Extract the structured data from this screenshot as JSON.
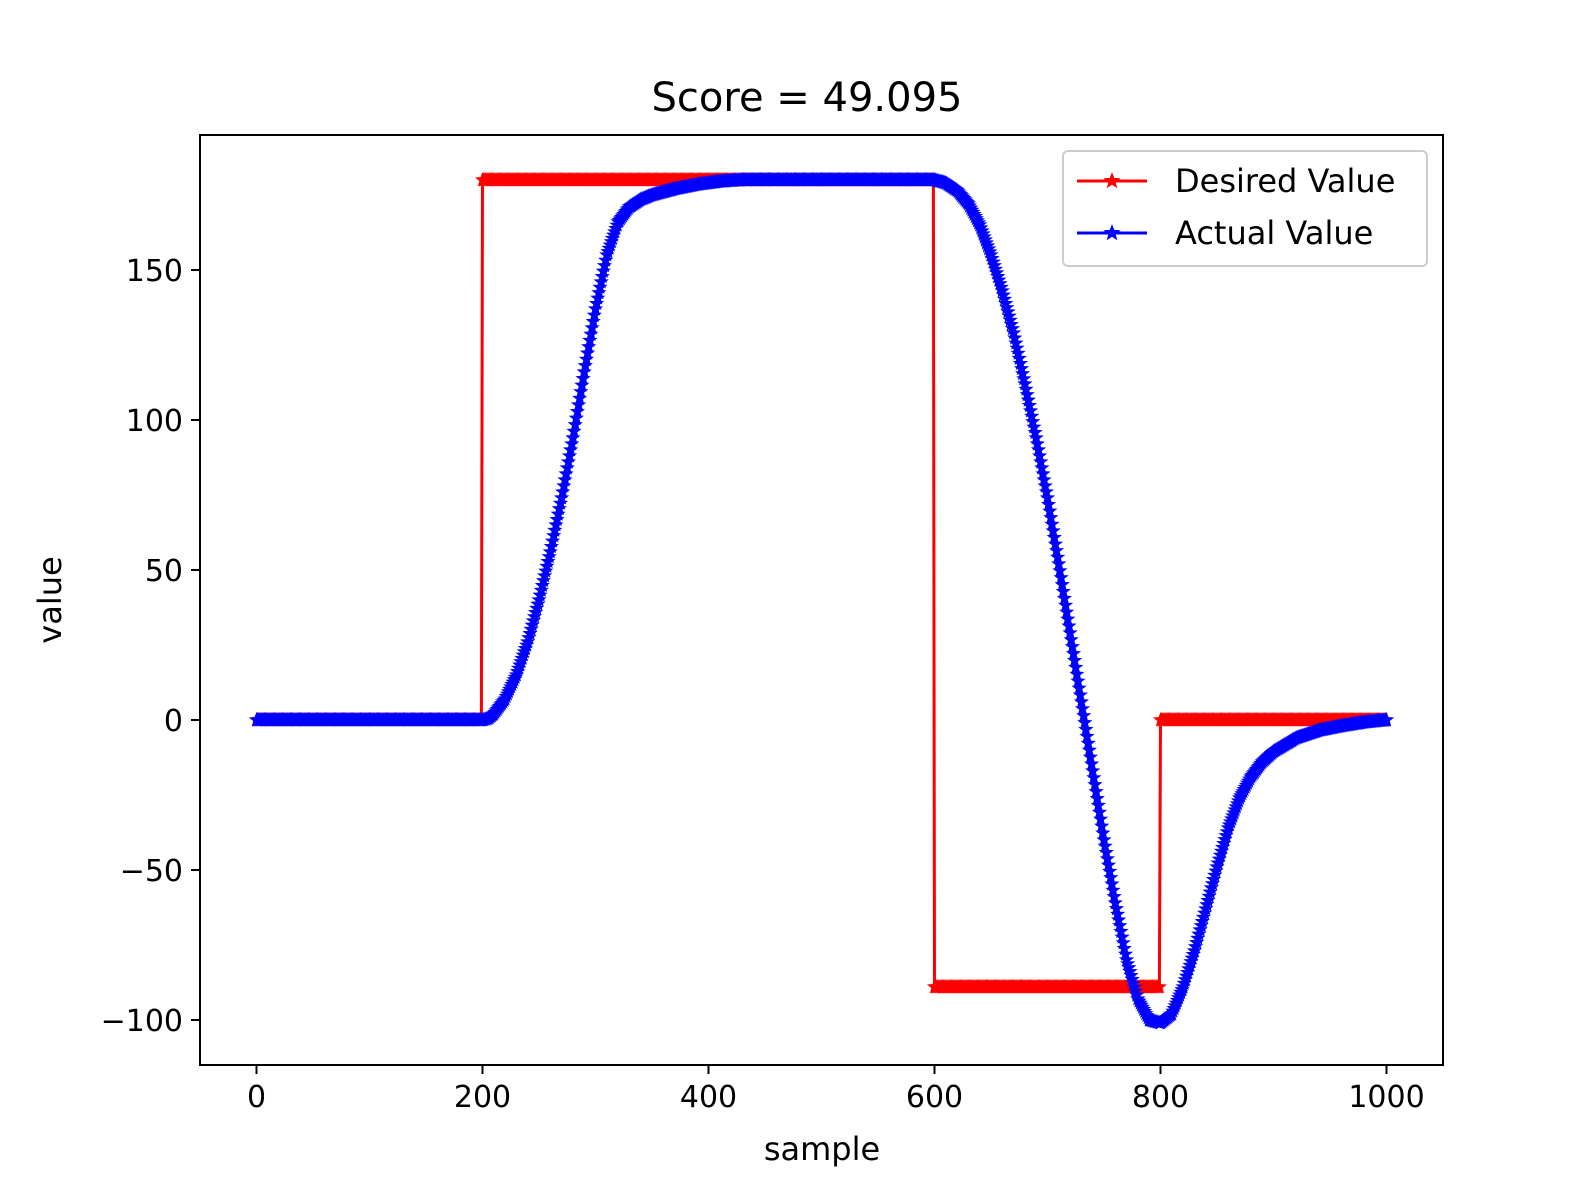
{
  "chart_data": {
    "type": "line",
    "title": "Score = 49.095",
    "xlabel": "sample",
    "ylabel": "value",
    "xlim": [
      -50,
      1050
    ],
    "ylim": [
      -115,
      195
    ],
    "xticks": [
      0,
      200,
      400,
      600,
      800,
      1000
    ],
    "xtick_labels": [
      "0",
      "200",
      "400",
      "600",
      "800",
      "1000"
    ],
    "yticks": [
      -100,
      -50,
      0,
      50,
      100,
      150
    ],
    "ytick_labels": [
      "−100",
      "−50",
      "0",
      "50",
      "100",
      "150"
    ],
    "grid": false,
    "legend_position": "upper-right",
    "marker": "star",
    "series": [
      {
        "name": "Desired Value",
        "color": "#ff0000",
        "points": [
          [
            0,
            0
          ],
          [
            199,
            0
          ],
          [
            200,
            180
          ],
          [
            599,
            180
          ],
          [
            600,
            -89
          ],
          [
            799,
            -89
          ],
          [
            800,
            0
          ],
          [
            1000,
            0
          ]
        ]
      },
      {
        "name": "Actual Value",
        "color": "#0000ff",
        "points": [
          [
            0,
            0
          ],
          [
            200,
            0
          ],
          [
            205,
            0.5
          ],
          [
            210,
            2
          ],
          [
            220,
            7
          ],
          [
            230,
            15
          ],
          [
            240,
            26
          ],
          [
            250,
            40
          ],
          [
            260,
            56
          ],
          [
            270,
            74
          ],
          [
            280,
            94
          ],
          [
            290,
            116
          ],
          [
            300,
            137
          ],
          [
            310,
            155
          ],
          [
            320,
            166
          ],
          [
            330,
            171
          ],
          [
            340,
            173.5
          ],
          [
            350,
            175
          ],
          [
            370,
            177
          ],
          [
            390,
            178.5
          ],
          [
            410,
            179.5
          ],
          [
            430,
            180
          ],
          [
            600,
            180
          ],
          [
            610,
            179
          ],
          [
            620,
            176.5
          ],
          [
            630,
            172
          ],
          [
            640,
            165
          ],
          [
            650,
            155
          ],
          [
            660,
            143
          ],
          [
            670,
            129
          ],
          [
            680,
            112
          ],
          [
            690,
            94
          ],
          [
            700,
            74
          ],
          [
            710,
            52
          ],
          [
            720,
            29
          ],
          [
            730,
            6
          ],
          [
            740,
            -17
          ],
          [
            750,
            -40
          ],
          [
            760,
            -61
          ],
          [
            770,
            -80
          ],
          [
            780,
            -93
          ],
          [
            790,
            -100
          ],
          [
            800,
            -101
          ],
          [
            810,
            -98
          ],
          [
            820,
            -89
          ],
          [
            830,
            -77
          ],
          [
            840,
            -63
          ],
          [
            850,
            -49
          ],
          [
            860,
            -36
          ],
          [
            870,
            -26
          ],
          [
            880,
            -19
          ],
          [
            890,
            -14
          ],
          [
            900,
            -10.5
          ],
          [
            920,
            -6
          ],
          [
            940,
            -3.5
          ],
          [
            960,
            -2
          ],
          [
            980,
            -0.8
          ],
          [
            1000,
            0
          ]
        ]
      }
    ]
  }
}
